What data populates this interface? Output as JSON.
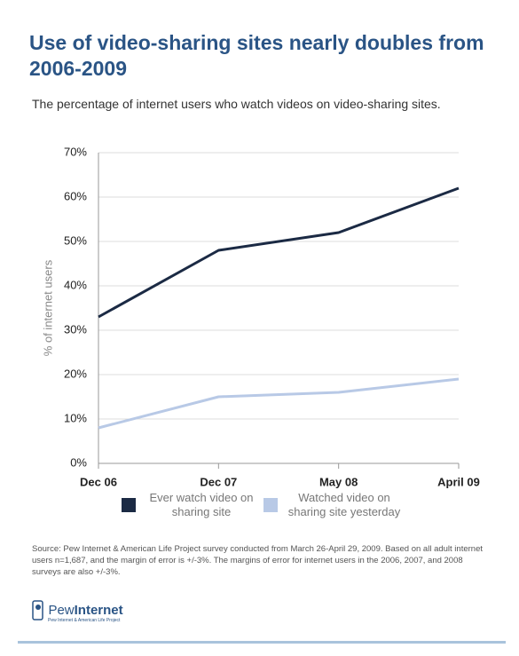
{
  "chart_data": {
    "type": "line",
    "title": "Use of video-sharing sites nearly doubles from 2006-2009",
    "subtitle": "The percentage of internet users who watch videos on video-sharing sites.",
    "y_label": "% of internet users",
    "categories": [
      "Dec 06",
      "Dec 07",
      "May 08",
      "April 09"
    ],
    "series": [
      {
        "name": "Ever watch video on sharing site",
        "color": "#1b2a44",
        "values": [
          33,
          48,
          52,
          62
        ]
      },
      {
        "name": "Watched video on sharing site yesterday",
        "color": "#b8c9e6",
        "values": [
          8,
          15,
          16,
          19
        ]
      }
    ],
    "ylim": [
      0,
      70
    ],
    "yticks": [
      {
        "value": 0,
        "label": "0%"
      },
      {
        "value": 10,
        "label": "10%"
      },
      {
        "value": 20,
        "label": "20%"
      },
      {
        "value": 30,
        "label": "30%"
      },
      {
        "value": 40,
        "label": "40%"
      },
      {
        "value": 50,
        "label": "50%"
      },
      {
        "value": 60,
        "label": "60%"
      },
      {
        "value": 70,
        "label": "70%"
      }
    ],
    "grid": true,
    "legend": "bottom"
  },
  "footer": {
    "source": "Source: Pew Internet & American Life Project survey conducted from March 26-April 29, 2009. Based on all adult internet users n=1,687, and the margin of error is +/-3%. The margins of error for internet users in the 2006, 2007, and 2008 surveys are also +/-3%.",
    "logo": {
      "word1": "Pew",
      "word2": "Internet",
      "tagline": "Pew Internet & American Life Project"
    }
  }
}
